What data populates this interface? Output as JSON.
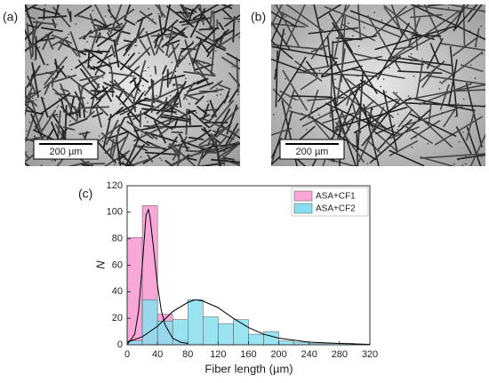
{
  "panels": [
    {
      "label": "(a)",
      "scale_bar": "200 µm"
    },
    {
      "label": "(b)",
      "scale_bar": "200 µm"
    }
  ],
  "chart_data": {
    "type": "histogram",
    "panel_label": "(c)",
    "x_label": "Fiber length (µm)",
    "y_label": "N",
    "bins": [
      0,
      20,
      40,
      60,
      80,
      100,
      120,
      140,
      160,
      180,
      200,
      220,
      240,
      260,
      280,
      300,
      320
    ],
    "series": [
      {
        "name": "ASA+CF1",
        "color": "#f7a8d8",
        "values": [
          81,
          105,
          23,
          4,
          1,
          0,
          0,
          0,
          0,
          0,
          0,
          0,
          0,
          0,
          0,
          0
        ],
        "fit": {
          "x": [
            0,
            10,
            15,
            20,
            25,
            28,
            30,
            35,
            40,
            45,
            50,
            60,
            70,
            80
          ],
          "values": [
            0,
            8,
            25,
            60,
            98,
            102,
            97,
            72,
            45,
            26,
            15,
            5,
            2,
            1
          ]
        }
      },
      {
        "name": "ASA+CF2",
        "color": "#88dff0",
        "values": [
          3,
          34,
          18,
          19,
          34,
          21,
          16,
          19,
          8,
          10,
          3,
          2,
          1,
          1,
          1,
          0
        ],
        "fit": {
          "x": [
            0,
            20,
            40,
            60,
            80,
            90,
            100,
            120,
            140,
            160,
            180,
            200,
            240,
            280,
            320
          ],
          "values": [
            2,
            6,
            14,
            25,
            32,
            34,
            33,
            28,
            20,
            13,
            8,
            5,
            2,
            1,
            0.3
          ]
        }
      }
    ],
    "xlim": [
      0,
      320
    ],
    "xticks": [
      0,
      40,
      80,
      120,
      160,
      200,
      240,
      280,
      320
    ],
    "ylim": [
      0,
      120
    ],
    "yticks": [
      0,
      20,
      40,
      60,
      80,
      100,
      120
    ],
    "legend": "upper right"
  }
}
